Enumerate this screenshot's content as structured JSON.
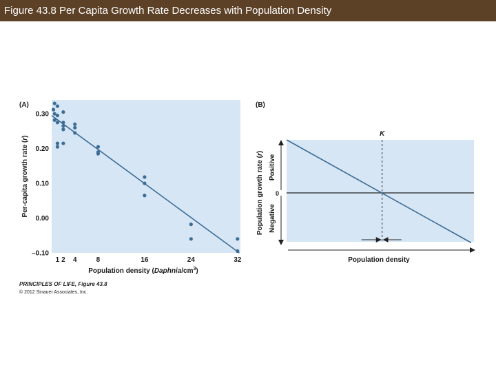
{
  "header": {
    "title": "Figure 43.8  Per Capita Growth Rate Decreases with Population Density"
  },
  "colors": {
    "title_bar": "#5c4127",
    "plot_bg": "#d6e6f5",
    "line": "#3d6d95",
    "point": "#3d6d95"
  },
  "chart_data": [
    {
      "panel": "(A)",
      "type": "scatter",
      "xlabel": "Population density (Daphnia/cm³)",
      "xlabel_main": "Population density (",
      "xlabel_italic": "Daphnia",
      "xlabel_unit": "/cm",
      "xlabel_sup": "3",
      "xlabel_close": ")",
      "ylabel": "Per-capita growth rate (r)",
      "ylabel_main": "Per-capita growth rate (",
      "ylabel_italic": "r",
      "ylabel_close": ")",
      "xlim": [
        0,
        32.5
      ],
      "ylim": [
        -0.1,
        0.34
      ],
      "xticks": [
        1,
        2,
        4,
        8,
        16,
        24,
        32
      ],
      "yticks": [
        0.3,
        0.2,
        0.1,
        0.0,
        -0.1
      ],
      "ytick_labels": [
        "0.30",
        "0.20",
        "0.10",
        "0.00",
        "–0.10"
      ],
      "points": [
        {
          "x": 0.3,
          "y": 0.312
        },
        {
          "x": 0.5,
          "y": 0.33
        },
        {
          "x": 0.5,
          "y": 0.3
        },
        {
          "x": 0.5,
          "y": 0.282
        },
        {
          "x": 1,
          "y": 0.322
        },
        {
          "x": 1,
          "y": 0.295
        },
        {
          "x": 1,
          "y": 0.275
        },
        {
          "x": 1,
          "y": 0.215
        },
        {
          "x": 1,
          "y": 0.205
        },
        {
          "x": 2,
          "y": 0.305
        },
        {
          "x": 2,
          "y": 0.275
        },
        {
          "x": 2,
          "y": 0.265
        },
        {
          "x": 2,
          "y": 0.255
        },
        {
          "x": 2,
          "y": 0.215
        },
        {
          "x": 4,
          "y": 0.27
        },
        {
          "x": 4,
          "y": 0.26
        },
        {
          "x": 4,
          "y": 0.245
        },
        {
          "x": 8,
          "y": 0.205
        },
        {
          "x": 8,
          "y": 0.19
        },
        {
          "x": 8,
          "y": 0.185
        },
        {
          "x": 16,
          "y": 0.118
        },
        {
          "x": 16,
          "y": 0.1
        },
        {
          "x": 16,
          "y": 0.065
        },
        {
          "x": 24,
          "y": -0.018
        },
        {
          "x": 24,
          "y": -0.06
        },
        {
          "x": 32,
          "y": -0.06
        },
        {
          "x": 32,
          "y": -0.095
        }
      ],
      "fit_line": [
        {
          "x": 0,
          "y": 0.295
        },
        {
          "x": 32.3,
          "y": -0.1
        }
      ]
    },
    {
      "panel": "(B)",
      "type": "line",
      "xlabel": "Population density",
      "ylabel": "Population growth rate (r)",
      "ylabel_main": "Population growth rate (",
      "ylabel_italic": "r",
      "ylabel_close": ")",
      "positive_label": "Positive",
      "negative_label": "Negative",
      "zero_label": "0",
      "k_label": "K",
      "k_fraction": 0.51,
      "line_start": 1.0,
      "line_end": -1.0
    }
  ],
  "footer": {
    "book": "PRINCIPLES OF LIFE, Figure 43.8",
    "copyright": "© 2012 Sinauer Associates, Inc."
  }
}
